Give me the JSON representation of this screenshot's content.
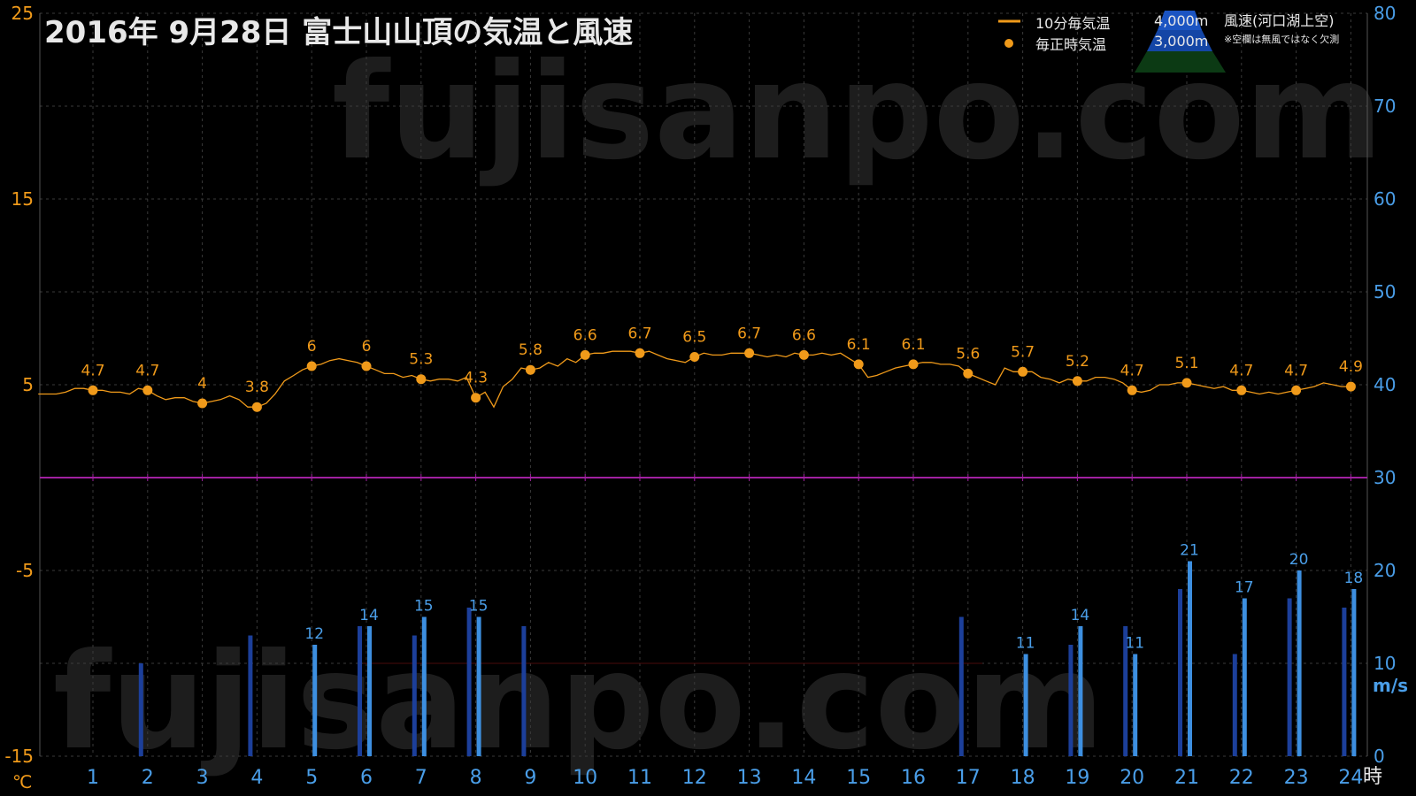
{
  "title": "2016年  9月28日   富士山山頂の気温と風速",
  "watermark": "fujisanpo.com",
  "legend": {
    "line_label": "10分毎気温",
    "dot_label": "毎正時気温",
    "alt_4000": "4,000m",
    "alt_3000": "3,000m",
    "wind_label": "風速(河口湖上空)",
    "note": "※空欄は無風ではなく欠測"
  },
  "axes": {
    "left_unit": "℃",
    "right_unit": "m/s",
    "x_unit": "時"
  },
  "colors": {
    "temperature": "#f09a1a",
    "wind_3000": "#1c3f9a",
    "wind_4000": "#3d8fe0",
    "zero_line": "#a020a0",
    "grid": "#3a3a3a"
  },
  "chart_data": {
    "type": "line+bar",
    "x_hours": [
      1,
      2,
      3,
      4,
      5,
      6,
      7,
      8,
      9,
      10,
      11,
      12,
      13,
      14,
      15,
      16,
      17,
      18,
      19,
      20,
      21,
      22,
      23,
      24
    ],
    "x_ticks": [
      "1",
      "2",
      "3",
      "4",
      "5",
      "6",
      "7",
      "8",
      "9",
      "10",
      "11",
      "12",
      "13",
      "14",
      "15",
      "16",
      "17",
      "18",
      "19",
      "20",
      "21",
      "22",
      "23",
      "24"
    ],
    "left_axis": {
      "label": "℃",
      "range": [
        -15,
        25
      ],
      "ticks": [
        -15,
        -5,
        5,
        15,
        25
      ]
    },
    "right_axis": {
      "label": "m/s",
      "range": [
        0,
        80
      ],
      "ticks": [
        0,
        10,
        20,
        30,
        40,
        50,
        60,
        70,
        80
      ]
    },
    "hourly_temperature": [
      4.7,
      4.7,
      4.0,
      3.8,
      6.0,
      6.0,
      5.3,
      4.3,
      5.8,
      6.6,
      6.7,
      6.5,
      6.7,
      6.6,
      6.1,
      6.1,
      5.6,
      5.7,
      5.2,
      4.7,
      5.1,
      4.7,
      4.7,
      4.9
    ],
    "hourly_temperature_labels": [
      "4.7",
      "4.7",
      "4",
      "3.8",
      "6",
      "6",
      "5.3",
      "4.3",
      "5.8",
      "6.6",
      "6.7",
      "6.5",
      "6.7",
      "6.6",
      "6.1",
      "6.1",
      "5.6",
      "5.7",
      "5.2",
      "4.7",
      "5.1",
      "4.7",
      "4.7",
      "4.9"
    ],
    "ten_minute_temperature": [
      {
        "t": 0.0,
        "v": 4.5
      },
      {
        "t": 0.17,
        "v": 4.5
      },
      {
        "t": 0.33,
        "v": 4.5
      },
      {
        "t": 0.5,
        "v": 4.6
      },
      {
        "t": 0.67,
        "v": 4.8
      },
      {
        "t": 0.83,
        "v": 4.8
      },
      {
        "t": 1.0,
        "v": 4.7
      },
      {
        "t": 1.17,
        "v": 4.7
      },
      {
        "t": 1.33,
        "v": 4.6
      },
      {
        "t": 1.5,
        "v": 4.6
      },
      {
        "t": 1.67,
        "v": 4.5
      },
      {
        "t": 1.83,
        "v": 4.8
      },
      {
        "t": 2.0,
        "v": 4.7
      },
      {
        "t": 2.17,
        "v": 4.4
      },
      {
        "t": 2.33,
        "v": 4.2
      },
      {
        "t": 2.5,
        "v": 4.3
      },
      {
        "t": 2.67,
        "v": 4.3
      },
      {
        "t": 2.83,
        "v": 4.1
      },
      {
        "t": 3.0,
        "v": 4.0
      },
      {
        "t": 3.17,
        "v": 4.1
      },
      {
        "t": 3.33,
        "v": 4.2
      },
      {
        "t": 3.5,
        "v": 4.4
      },
      {
        "t": 3.67,
        "v": 4.2
      },
      {
        "t": 3.83,
        "v": 3.8
      },
      {
        "t": 4.0,
        "v": 3.8
      },
      {
        "t": 4.17,
        "v": 4.0
      },
      {
        "t": 4.33,
        "v": 4.5
      },
      {
        "t": 4.5,
        "v": 5.2
      },
      {
        "t": 4.67,
        "v": 5.5
      },
      {
        "t": 4.83,
        "v": 5.8
      },
      {
        "t": 5.0,
        "v": 6.0
      },
      {
        "t": 5.17,
        "v": 6.1
      },
      {
        "t": 5.33,
        "v": 6.3
      },
      {
        "t": 5.5,
        "v": 6.4
      },
      {
        "t": 5.67,
        "v": 6.3
      },
      {
        "t": 5.83,
        "v": 6.2
      },
      {
        "t": 6.0,
        "v": 6.0
      },
      {
        "t": 6.17,
        "v": 5.8
      },
      {
        "t": 6.33,
        "v": 5.6
      },
      {
        "t": 6.5,
        "v": 5.6
      },
      {
        "t": 6.67,
        "v": 5.4
      },
      {
        "t": 6.83,
        "v": 5.5
      },
      {
        "t": 7.0,
        "v": 5.3
      },
      {
        "t": 7.17,
        "v": 5.2
      },
      {
        "t": 7.33,
        "v": 5.3
      },
      {
        "t": 7.5,
        "v": 5.3
      },
      {
        "t": 7.67,
        "v": 5.2
      },
      {
        "t": 7.83,
        "v": 5.4
      },
      {
        "t": 8.0,
        "v": 4.3
      },
      {
        "t": 8.17,
        "v": 4.6
      },
      {
        "t": 8.33,
        "v": 3.8
      },
      {
        "t": 8.5,
        "v": 4.9
      },
      {
        "t": 8.67,
        "v": 5.3
      },
      {
        "t": 8.83,
        "v": 5.9
      },
      {
        "t": 9.0,
        "v": 5.8
      },
      {
        "t": 9.17,
        "v": 5.9
      },
      {
        "t": 9.33,
        "v": 6.2
      },
      {
        "t": 9.5,
        "v": 6.0
      },
      {
        "t": 9.67,
        "v": 6.4
      },
      {
        "t": 9.83,
        "v": 6.2
      },
      {
        "t": 10.0,
        "v": 6.6
      },
      {
        "t": 10.17,
        "v": 6.7
      },
      {
        "t": 10.33,
        "v": 6.7
      },
      {
        "t": 10.5,
        "v": 6.8
      },
      {
        "t": 10.67,
        "v": 6.8
      },
      {
        "t": 10.83,
        "v": 6.8
      },
      {
        "t": 11.0,
        "v": 6.7
      },
      {
        "t": 11.17,
        "v": 6.8
      },
      {
        "t": 11.33,
        "v": 6.6
      },
      {
        "t": 11.5,
        "v": 6.4
      },
      {
        "t": 11.67,
        "v": 6.3
      },
      {
        "t": 11.83,
        "v": 6.2
      },
      {
        "t": 12.0,
        "v": 6.5
      },
      {
        "t": 12.17,
        "v": 6.7
      },
      {
        "t": 12.33,
        "v": 6.6
      },
      {
        "t": 12.5,
        "v": 6.6
      },
      {
        "t": 12.67,
        "v": 6.7
      },
      {
        "t": 12.83,
        "v": 6.7
      },
      {
        "t": 13.0,
        "v": 6.7
      },
      {
        "t": 13.17,
        "v": 6.6
      },
      {
        "t": 13.33,
        "v": 6.5
      },
      {
        "t": 13.5,
        "v": 6.6
      },
      {
        "t": 13.67,
        "v": 6.5
      },
      {
        "t": 13.83,
        "v": 6.7
      },
      {
        "t": 14.0,
        "v": 6.6
      },
      {
        "t": 14.17,
        "v": 6.6
      },
      {
        "t": 14.33,
        "v": 6.7
      },
      {
        "t": 14.5,
        "v": 6.6
      },
      {
        "t": 14.67,
        "v": 6.7
      },
      {
        "t": 14.83,
        "v": 6.4
      },
      {
        "t": 15.0,
        "v": 6.1
      },
      {
        "t": 15.17,
        "v": 5.4
      },
      {
        "t": 15.33,
        "v": 5.5
      },
      {
        "t": 15.5,
        "v": 5.7
      },
      {
        "t": 15.67,
        "v": 5.9
      },
      {
        "t": 15.83,
        "v": 6.0
      },
      {
        "t": 16.0,
        "v": 6.1
      },
      {
        "t": 16.17,
        "v": 6.2
      },
      {
        "t": 16.33,
        "v": 6.2
      },
      {
        "t": 16.5,
        "v": 6.1
      },
      {
        "t": 16.67,
        "v": 6.1
      },
      {
        "t": 16.83,
        "v": 6.0
      },
      {
        "t": 17.0,
        "v": 5.6
      },
      {
        "t": 17.17,
        "v": 5.4
      },
      {
        "t": 17.33,
        "v": 5.2
      },
      {
        "t": 17.5,
        "v": 5.0
      },
      {
        "t": 17.67,
        "v": 5.9
      },
      {
        "t": 17.83,
        "v": 5.7
      },
      {
        "t": 18.0,
        "v": 5.7
      },
      {
        "t": 18.17,
        "v": 5.7
      },
      {
        "t": 18.33,
        "v": 5.4
      },
      {
        "t": 18.5,
        "v": 5.3
      },
      {
        "t": 18.67,
        "v": 5.1
      },
      {
        "t": 18.83,
        "v": 5.3
      },
      {
        "t": 19.0,
        "v": 5.2
      },
      {
        "t": 19.17,
        "v": 5.2
      },
      {
        "t": 19.33,
        "v": 5.4
      },
      {
        "t": 19.5,
        "v": 5.4
      },
      {
        "t": 19.67,
        "v": 5.3
      },
      {
        "t": 19.83,
        "v": 5.1
      },
      {
        "t": 20.0,
        "v": 4.7
      },
      {
        "t": 20.17,
        "v": 4.6
      },
      {
        "t": 20.33,
        "v": 4.7
      },
      {
        "t": 20.5,
        "v": 5.0
      },
      {
        "t": 20.67,
        "v": 5.0
      },
      {
        "t": 20.83,
        "v": 5.1
      },
      {
        "t": 21.0,
        "v": 5.1
      },
      {
        "t": 21.17,
        "v": 5.0
      },
      {
        "t": 21.33,
        "v": 4.9
      },
      {
        "t": 21.5,
        "v": 4.8
      },
      {
        "t": 21.67,
        "v": 4.9
      },
      {
        "t": 21.83,
        "v": 4.7
      },
      {
        "t": 22.0,
        "v": 4.7
      },
      {
        "t": 22.17,
        "v": 4.6
      },
      {
        "t": 22.33,
        "v": 4.5
      },
      {
        "t": 22.5,
        "v": 4.6
      },
      {
        "t": 22.67,
        "v": 4.5
      },
      {
        "t": 22.83,
        "v": 4.6
      },
      {
        "t": 23.0,
        "v": 4.7
      },
      {
        "t": 23.17,
        "v": 4.8
      },
      {
        "t": 23.33,
        "v": 4.9
      },
      {
        "t": 23.5,
        "v": 5.1
      },
      {
        "t": 23.67,
        "v": 5.0
      },
      {
        "t": 23.83,
        "v": 4.9
      },
      {
        "t": 24.0,
        "v": 4.9
      }
    ],
    "series": [
      {
        "name": "3,000m",
        "values": [
          null,
          10,
          null,
          13,
          null,
          14,
          13,
          16,
          14,
          null,
          null,
          null,
          null,
          null,
          null,
          null,
          15,
          null,
          12,
          14,
          18,
          11,
          17,
          16
        ]
      },
      {
        "name": "4,000m",
        "values": [
          null,
          null,
          null,
          null,
          12,
          14,
          15,
          15,
          null,
          null,
          null,
          null,
          null,
          null,
          null,
          null,
          null,
          11,
          14,
          11,
          21,
          17,
          20,
          18
        ]
      }
    ],
    "wind_labels": [
      "",
      "",
      "",
      "",
      "12",
      "14",
      "15",
      "15",
      "",
      "",
      "",
      "",
      "",
      "",
      "",
      "",
      "",
      "11",
      "14",
      "11",
      "21",
      "17",
      "20",
      "18"
    ]
  }
}
